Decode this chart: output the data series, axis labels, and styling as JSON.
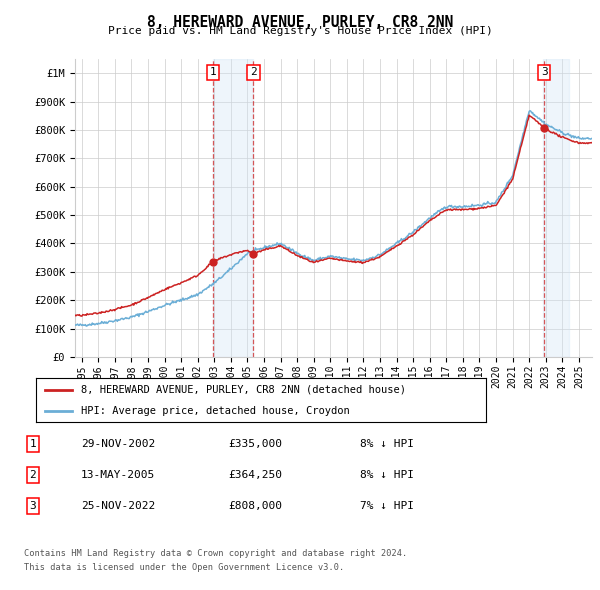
{
  "title": "8, HEREWARD AVENUE, PURLEY, CR8 2NN",
  "subtitle": "Price paid vs. HM Land Registry's House Price Index (HPI)",
  "yticks": [
    0,
    100000,
    200000,
    300000,
    400000,
    500000,
    600000,
    700000,
    800000,
    900000,
    1000000
  ],
  "ytick_labels": [
    "£0",
    "£100K",
    "£200K",
    "£300K",
    "£400K",
    "£500K",
    "£600K",
    "£700K",
    "£800K",
    "£900K",
    "£1M"
  ],
  "xlim_start": 1994.6,
  "xlim_end": 2025.8,
  "ylim_min": 0,
  "ylim_max": 1050000,
  "sale1_x": 2002.91,
  "sale1_y": 335000,
  "sale2_x": 2005.36,
  "sale2_y": 364250,
  "sale3_x": 2022.9,
  "sale3_y": 808000,
  "legend_line1": "8, HEREWARD AVENUE, PURLEY, CR8 2NN (detached house)",
  "legend_line2": "HPI: Average price, detached house, Croydon",
  "sale_label1": "29-NOV-2002",
  "sale_price1": "£335,000",
  "sale_hpi1": "8% ↓ HPI",
  "sale_label2": "13-MAY-2005",
  "sale_price2": "£364,250",
  "sale_hpi2": "8% ↓ HPI",
  "sale_label3": "25-NOV-2022",
  "sale_price3": "£808,000",
  "sale_hpi3": "7% ↓ HPI",
  "footer1": "Contains HM Land Registry data © Crown copyright and database right 2024.",
  "footer2": "This data is licensed under the Open Government Licence v3.0.",
  "hpi_color": "#6baed6",
  "price_color": "#cc2222",
  "shade_color": "#d0e4f5",
  "grid_color": "#cccccc",
  "bg_color": "#ffffff"
}
